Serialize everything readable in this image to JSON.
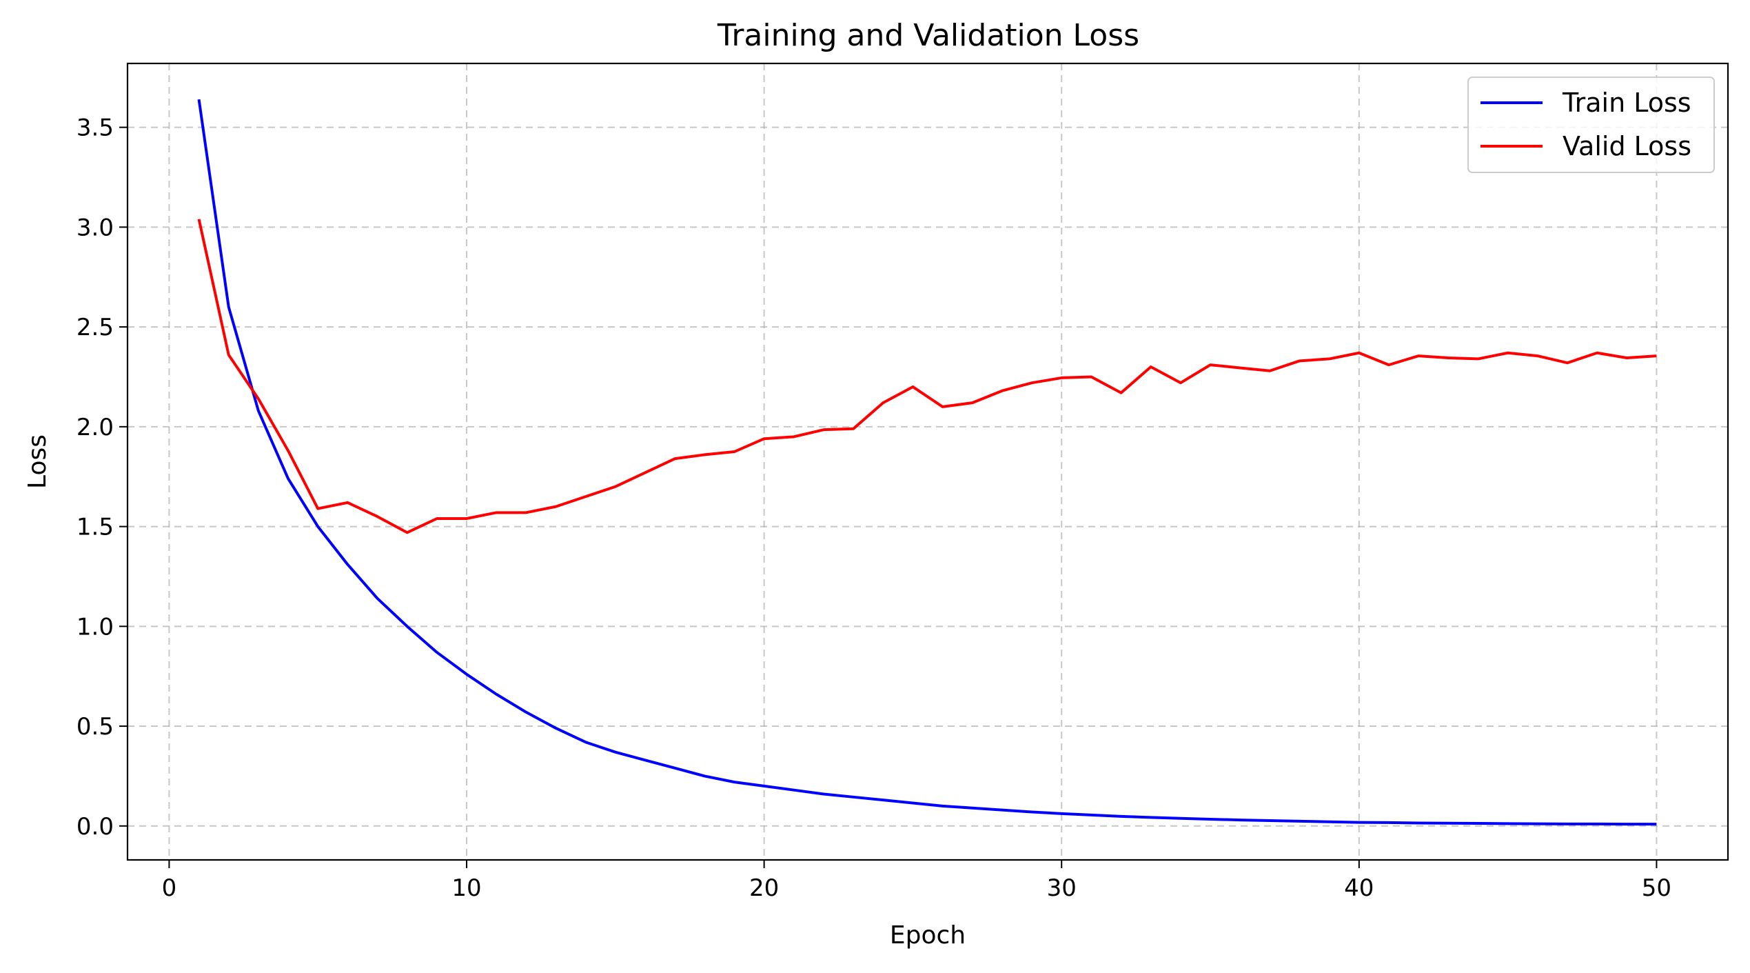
{
  "chart_data": {
    "type": "line",
    "title": "Training and Validation Loss",
    "xlabel": "Epoch",
    "ylabel": "Loss",
    "xlim": [
      -1.4,
      52.4
    ],
    "ylim": [
      -0.17,
      3.82
    ],
    "xticks": [
      0,
      10,
      20,
      30,
      40,
      50
    ],
    "xtick_labels": [
      "0",
      "10",
      "20",
      "30",
      "40",
      "50"
    ],
    "yticks": [
      0.0,
      0.5,
      1.0,
      1.5,
      2.0,
      2.5,
      3.0,
      3.5
    ],
    "ytick_labels": [
      "0.0",
      "0.5",
      "1.0",
      "1.5",
      "2.0",
      "2.5",
      "3.0",
      "3.5"
    ],
    "grid": true,
    "legend_position": "top-right",
    "x": [
      1,
      2,
      3,
      4,
      5,
      6,
      7,
      8,
      9,
      10,
      11,
      12,
      13,
      14,
      15,
      16,
      17,
      18,
      19,
      20,
      21,
      22,
      23,
      24,
      25,
      26,
      27,
      28,
      29,
      30,
      31,
      32,
      33,
      34,
      35,
      36,
      37,
      38,
      39,
      40,
      41,
      42,
      43,
      44,
      45,
      46,
      47,
      48,
      49,
      50
    ],
    "series": [
      {
        "name": "Train Loss",
        "color": "#0000ff",
        "values": [
          3.64,
          2.6,
          2.08,
          1.74,
          1.5,
          1.31,
          1.14,
          1.0,
          0.87,
          0.76,
          0.66,
          0.57,
          0.49,
          0.42,
          0.37,
          0.33,
          0.29,
          0.25,
          0.22,
          0.2,
          0.18,
          0.16,
          0.145,
          0.13,
          0.115,
          0.1,
          0.09,
          0.08,
          0.07,
          0.062,
          0.055,
          0.048,
          0.043,
          0.038,
          0.034,
          0.03,
          0.027,
          0.024,
          0.021,
          0.018,
          0.017,
          0.015,
          0.014,
          0.013,
          0.012,
          0.011,
          0.01,
          0.01,
          0.009,
          0.009
        ]
      },
      {
        "name": "Valid Loss",
        "color": "#ff0000",
        "values": [
          3.04,
          2.36,
          2.14,
          1.88,
          1.59,
          1.62,
          1.55,
          1.47,
          1.54,
          1.54,
          1.57,
          1.57,
          1.6,
          1.65,
          1.7,
          1.77,
          1.84,
          1.86,
          1.875,
          1.94,
          1.95,
          1.985,
          1.99,
          2.12,
          2.2,
          2.1,
          2.12,
          2.18,
          2.22,
          2.245,
          2.25,
          2.17,
          2.3,
          2.22,
          2.31,
          2.295,
          2.28,
          2.33,
          2.34,
          2.37,
          2.31,
          2.355,
          2.345,
          2.34,
          2.37,
          2.355,
          2.32,
          2.37,
          2.345,
          2.355
        ]
      }
    ]
  }
}
